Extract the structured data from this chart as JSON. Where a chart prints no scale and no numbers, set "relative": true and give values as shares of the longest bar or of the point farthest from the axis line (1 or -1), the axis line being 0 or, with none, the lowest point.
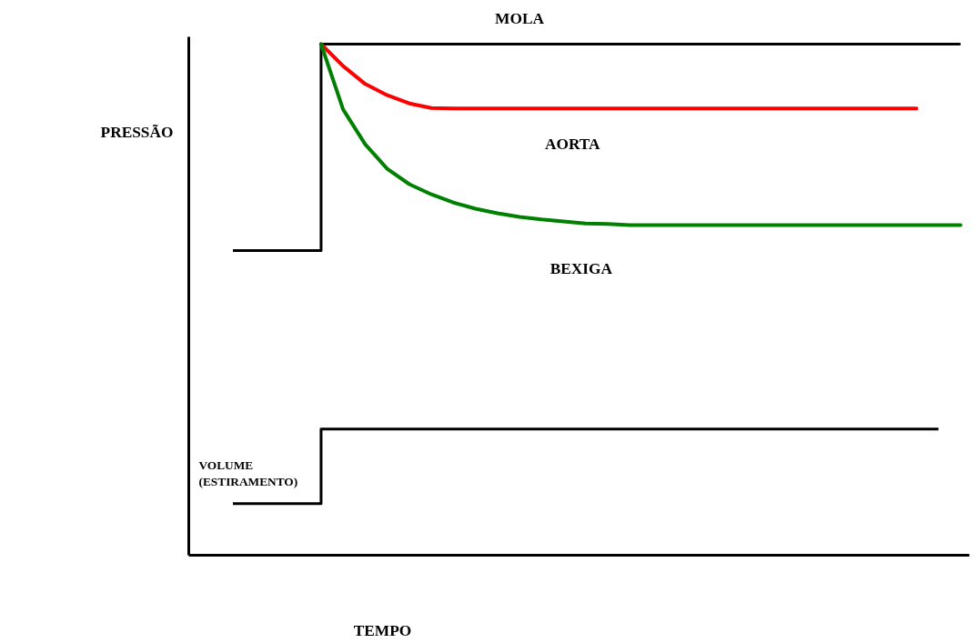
{
  "chart_data": {
    "type": "line",
    "relative": true,
    "xlabel": "TEMPO",
    "ylabel": "PRESSÃO",
    "marker": "none",
    "line_style": "solid",
    "categories": [
      null,
      null,
      null,
      null,
      null,
      null,
      null,
      null,
      null,
      null,
      null,
      null,
      null,
      null,
      null,
      null,
      null,
      null,
      null,
      null,
      null,
      null,
      null,
      null,
      null,
      null,
      null,
      null,
      null,
      null,
      null,
      null,
      null,
      null
    ],
    "series": [
      {
        "name": "MOLA",
        "type": "step",
        "color": "#000000",
        "values": [
          0.596,
          0.596,
          0.596,
          0.596,
          1.0,
          1.0,
          1.0,
          1.0,
          1.0,
          1.0,
          1.0,
          1.0,
          1.0,
          1.0,
          1.0,
          1.0,
          1.0,
          1.0,
          1.0,
          1.0,
          1.0,
          1.0,
          1.0,
          1.0,
          1.0,
          1.0,
          1.0,
          1.0,
          1.0,
          1.0,
          1.0,
          1.0,
          1.0,
          1.0
        ]
      },
      {
        "name": "AORTA",
        "color": "#ff0000",
        "values": [
          null,
          null,
          null,
          null,
          1.0,
          0.957,
          0.922,
          0.9,
          0.884,
          0.875,
          0.874,
          0.874,
          0.874,
          0.874,
          0.874,
          0.874,
          0.874,
          0.874,
          0.874,
          0.874,
          0.874,
          0.874,
          0.874,
          0.874,
          0.874,
          0.874,
          0.874,
          0.874,
          0.874,
          0.874,
          0.874,
          0.874,
          null,
          null
        ]
      },
      {
        "name": "BEXIGA",
        "color": "#008000",
        "values": [
          null,
          null,
          null,
          null,
          1.0,
          0.872,
          0.804,
          0.756,
          0.726,
          0.706,
          0.69,
          0.678,
          0.669,
          0.662,
          0.657,
          0.653,
          0.649,
          0.648,
          0.646,
          0.646,
          0.646,
          0.646,
          0.646,
          0.646,
          0.646,
          0.646,
          0.646,
          0.646,
          0.646,
          0.646,
          0.646,
          0.646,
          0.646,
          0.646
        ]
      },
      {
        "name": "VOLUME (ESTIRAMENTO)",
        "type": "step",
        "color": "#000000",
        "values": [
          0.101,
          0.101,
          0.101,
          0.101,
          0.247,
          0.247,
          0.247,
          0.247,
          0.247,
          0.247,
          0.247,
          0.247,
          0.247,
          0.247,
          0.247,
          0.247,
          0.247,
          0.247,
          0.247,
          0.247,
          0.247,
          0.247,
          0.247,
          0.247,
          0.247,
          0.247,
          0.247,
          0.247,
          0.247,
          0.247,
          0.247,
          0.247,
          0.247,
          null
        ]
      }
    ]
  }
}
